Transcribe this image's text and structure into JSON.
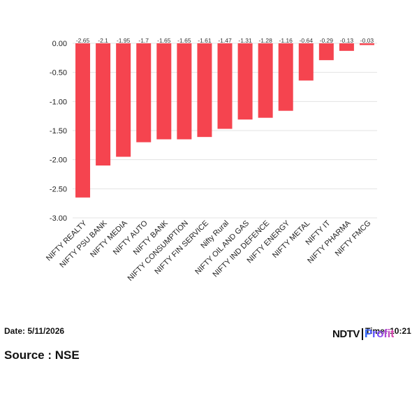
{
  "chart_data": {
    "type": "bar",
    "categories": [
      "NIFTY REALTY",
      "NIFTY PSU BANK",
      "NIFTY MEDIA",
      "NIFTY AUTO",
      "NIFTY BANK",
      "NIFTY CONSUMPTION",
      "NIFTY FIN SERVICE",
      "Nifty Rural",
      "NIFTY OIL AND GAS",
      "NIFTY IND DEFENCE",
      "NIFTY ENERGY",
      "NIFTY METAL",
      "NIFTY IT",
      "NIFTY PHARMA",
      "NIFTY FMCG"
    ],
    "values": [
      -2.65,
      -2.1,
      -1.95,
      -1.7,
      -1.65,
      -1.65,
      -1.61,
      -1.47,
      -1.31,
      -1.28,
      -1.16,
      -0.64,
      -0.29,
      -0.13,
      -0.03
    ],
    "data_labels": [
      "-2.65",
      "-2.1",
      "-1.95",
      "-1.7",
      "-1.65",
      "-1.65",
      "-1.61",
      "-1.47",
      "-1.31",
      "-1.28",
      "-1.16",
      "-0.64",
      "-0.29",
      "-0.13",
      "-0.03"
    ],
    "yticks": [
      0,
      -0.5,
      -1,
      -1.5,
      -2,
      -2.5,
      -3
    ],
    "ytick_labels": [
      "0.00",
      "-0.50",
      "-1.00",
      "-1.50",
      "-2.00",
      "-2.50",
      "-3.00"
    ],
    "ylim": [
      -3,
      0
    ],
    "grid": true,
    "bar_color": "#f5444f",
    "title": "",
    "xlabel": "",
    "ylabel": ""
  },
  "footer": {
    "date": "Date: 5/11/2026",
    "time": "Time: 10:21",
    "source": "Source : NSE"
  },
  "logo": {
    "ndtv": "NDTV",
    "profit": "Profit"
  }
}
